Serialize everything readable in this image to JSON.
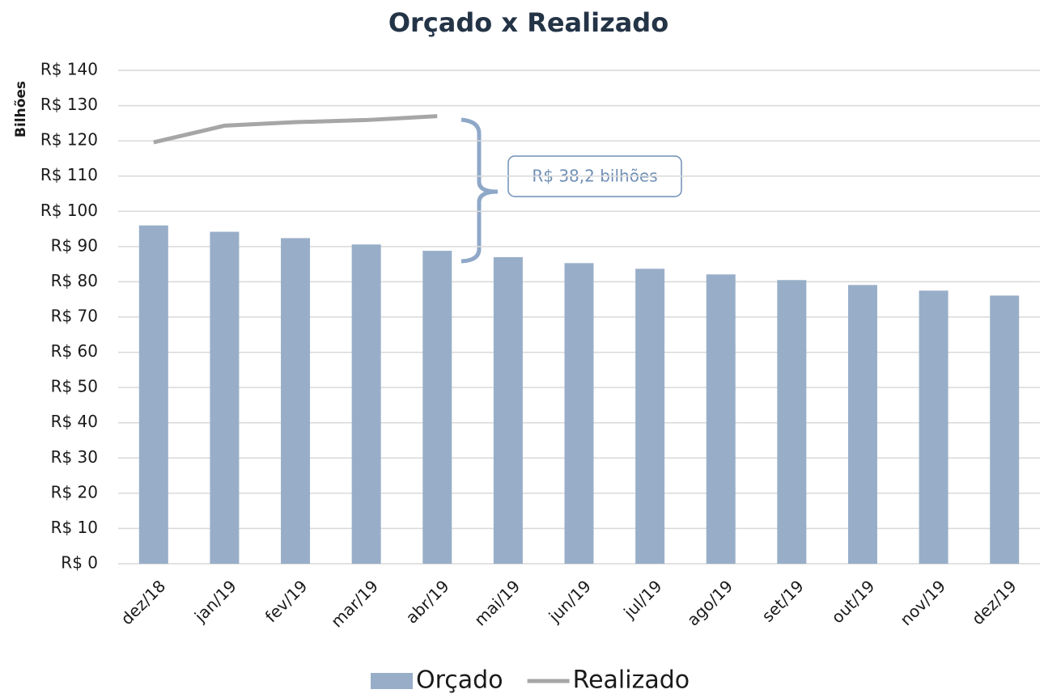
{
  "chart_data": {
    "type": "bar",
    "title": "Orçado x Realizado",
    "y_label": "Bilhões",
    "annotation": "R$ 38,2 bilhões",
    "categories": [
      "dez/18",
      "jan/19",
      "fev/19",
      "mar/19",
      "abr/19",
      "mai/19",
      "jun/19",
      "jul/19",
      "ago/19",
      "set/19",
      "out/19",
      "nov/19",
      "dez/19"
    ],
    "series": [
      {
        "name": "Orçado",
        "type": "bar",
        "color": "#98aec8",
        "values": [
          96,
          94.2,
          92.4,
          90.6,
          88.8,
          87,
          85.3,
          83.7,
          82.1,
          80.5,
          79.1,
          77.5,
          76.1
        ]
      },
      {
        "name": "Realizado",
        "type": "line",
        "color": "#a6a6a6",
        "values": [
          119.6,
          124.3,
          125.3,
          125.9,
          127,
          null,
          null,
          null,
          null,
          null,
          null,
          null,
          null
        ]
      }
    ],
    "ylim": [
      0,
      140
    ],
    "yticks": [
      {
        "value": 0,
        "label": "R$ 0"
      },
      {
        "value": 10,
        "label": "R$ 10"
      },
      {
        "value": 20,
        "label": "R$ 20"
      },
      {
        "value": 30,
        "label": "R$ 30"
      },
      {
        "value": 40,
        "label": "R$ 40"
      },
      {
        "value": 50,
        "label": "R$ 50"
      },
      {
        "value": 60,
        "label": "R$ 60"
      },
      {
        "value": 70,
        "label": "R$ 70"
      },
      {
        "value": 80,
        "label": "R$ 80"
      },
      {
        "value": 90,
        "label": "R$ 90"
      },
      {
        "value": 100,
        "label": "R$ 100"
      },
      {
        "value": 110,
        "label": "R$ 110"
      },
      {
        "value": 120,
        "label": "R$ 120"
      },
      {
        "value": 130,
        "label": "R$ 130"
      },
      {
        "value": 140,
        "label": "R$ 140"
      }
    ],
    "grid": true,
    "legend": "bottom"
  }
}
